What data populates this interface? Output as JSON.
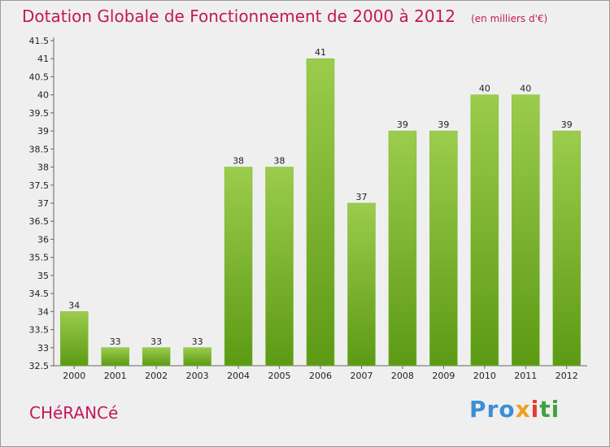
{
  "header": {
    "title": "Dotation Globale de Fonctionnement de 2000 à 2012",
    "unit": "(en milliers d'€)"
  },
  "footer": {
    "commune": "CHéRANCé",
    "logo": [
      "Pro",
      "x",
      "i",
      "ti"
    ]
  },
  "colors": {
    "bar_top": "#9ccc4d",
    "bar_bottom": "#5c9a14",
    "title": "#c2185b"
  },
  "chart_data": {
    "type": "bar",
    "title": "Dotation Globale de Fonctionnement de 2000 à 2012",
    "subtitle": "(en milliers d'€)",
    "categories": [
      "2000",
      "2001",
      "2002",
      "2003",
      "2004",
      "2005",
      "2006",
      "2007",
      "2008",
      "2009",
      "2010",
      "2011",
      "2012"
    ],
    "values": [
      34,
      33,
      33,
      33,
      38,
      38,
      41,
      37,
      39,
      39,
      40,
      40,
      39
    ],
    "data_labels": [
      "34",
      "33",
      "33",
      "33",
      "38",
      "38",
      "41",
      "37",
      "39",
      "39",
      "40",
      "40",
      "39"
    ],
    "xlabel": "",
    "ylabel": "",
    "ylim": [
      32.5,
      41.5
    ],
    "yticks": [
      32.5,
      33,
      33.5,
      34,
      34.5,
      35,
      35.5,
      36,
      36.5,
      37,
      37.5,
      38,
      38.5,
      39,
      39.5,
      40,
      40.5,
      41,
      41.5
    ],
    "ytick_labels": [
      "32.5",
      "33",
      "33.5",
      "34",
      "34.5",
      "35",
      "35.5",
      "36",
      "36.5",
      "37",
      "37.5",
      "38",
      "38.5",
      "39",
      "39.5",
      "40",
      "40.5",
      "41",
      "41.5"
    ],
    "grid": false,
    "legend": "none"
  }
}
